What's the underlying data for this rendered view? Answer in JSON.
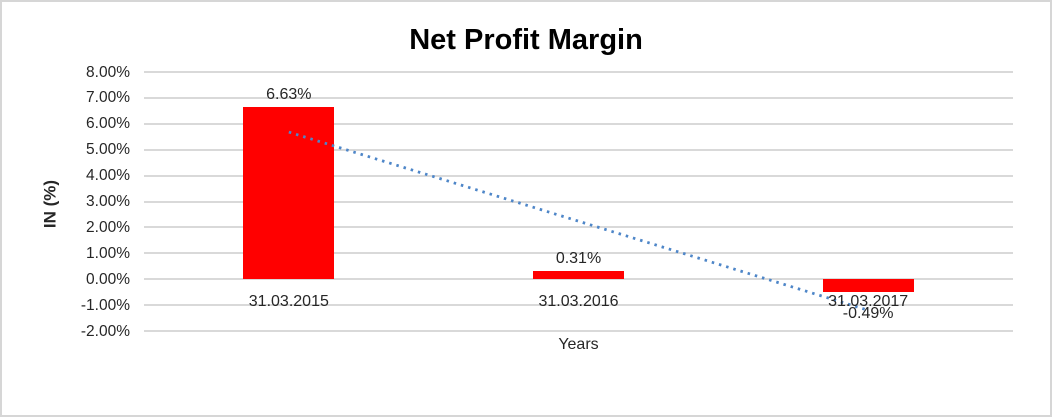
{
  "chart_data": {
    "type": "bar",
    "title": "Net Profit Margin",
    "xlabel": "Years",
    "ylabel": "IN (%)",
    "categories": [
      "31.03.2015",
      "31.03.2016",
      "31.03.2017"
    ],
    "series": [
      {
        "name": "Net Profit Margin",
        "values": [
          6.63,
          0.31,
          -0.49
        ],
        "data_labels": [
          "6.63%",
          "0.31%",
          "-0.49%"
        ],
        "bar_color": "#ff0000"
      }
    ],
    "yticks": [
      {
        "value": 8,
        "label": "8.00%"
      },
      {
        "value": 7,
        "label": "7.00%"
      },
      {
        "value": 6,
        "label": "6.00%"
      },
      {
        "value": 5,
        "label": "5.00%"
      },
      {
        "value": 4,
        "label": "4.00%"
      },
      {
        "value": 3,
        "label": "3.00%"
      },
      {
        "value": 2,
        "label": "2.00%"
      },
      {
        "value": 1,
        "label": "1.00%"
      },
      {
        "value": 0,
        "label": "0.00%"
      },
      {
        "value": -1,
        "label": "-1.00%"
      },
      {
        "value": -2,
        "label": "-2.00%"
      }
    ],
    "ylim": [
      -2,
      8
    ],
    "grid": true,
    "legend": "none",
    "trendline": {
      "style": "dotted",
      "color": "#4e86c8",
      "start_value": 5.68,
      "end_value": -1.2
    },
    "colors": {
      "bar": "#ff0000",
      "gridline": "#d9d9d9",
      "trendline": "#4e86c8",
      "text": "#262626",
      "title": "#000000",
      "frame_border": "#d6d6d6"
    }
  }
}
